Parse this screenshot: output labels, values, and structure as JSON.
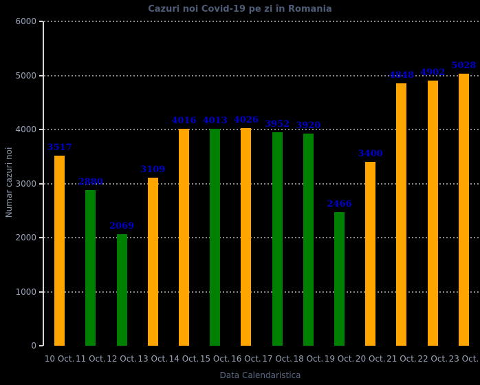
{
  "window": {
    "background_color": "#000000"
  },
  "chart_data": {
    "type": "bar",
    "title": "Cazuri noi Covid-19 pe zi în Romania",
    "xlabel": "Data Calendaristica",
    "ylabel": "Numar cazuri noi",
    "categories": [
      "10 Oct.",
      "11 Oct.",
      "12 Oct.",
      "13 Oct.",
      "14 Oct.",
      "15 Oct.",
      "16 Oct.",
      "17 Oct.",
      "18 Oct.",
      "19 Oct.",
      "20 Oct.",
      "21 Oct.",
      "22 Oct.",
      "23 Oct."
    ],
    "values": [
      3517,
      2880,
      2069,
      3109,
      4016,
      4013,
      4026,
      3952,
      3920,
      2466,
      3400,
      4848,
      4902,
      5028
    ],
    "bar_colors": [
      "#FFA500",
      "#008000",
      "#008000",
      "#FFA500",
      "#FFA500",
      "#008000",
      "#FFA500",
      "#008000",
      "#008000",
      "#008000",
      "#FFA500",
      "#FFA500",
      "#FFA500",
      "#FFA500"
    ],
    "value_labels_shown": true,
    "ylim": [
      0,
      6000
    ],
    "yticks": [
      0,
      1000,
      2000,
      3000,
      4000,
      5000,
      6000
    ],
    "grid": {
      "axis": "y",
      "style": "dotted",
      "color": "#8A8A8A"
    },
    "legend": "none",
    "colors": {
      "background": "#000000",
      "bar_orange": "#FFA500",
      "bar_green": "#008000",
      "value_label": "#0000CD",
      "title_text": "#4E5C78",
      "axis_label_text": "#5D6B85",
      "tick_label_text": "#9AA4B8",
      "spine": "#D8D8D8"
    }
  }
}
